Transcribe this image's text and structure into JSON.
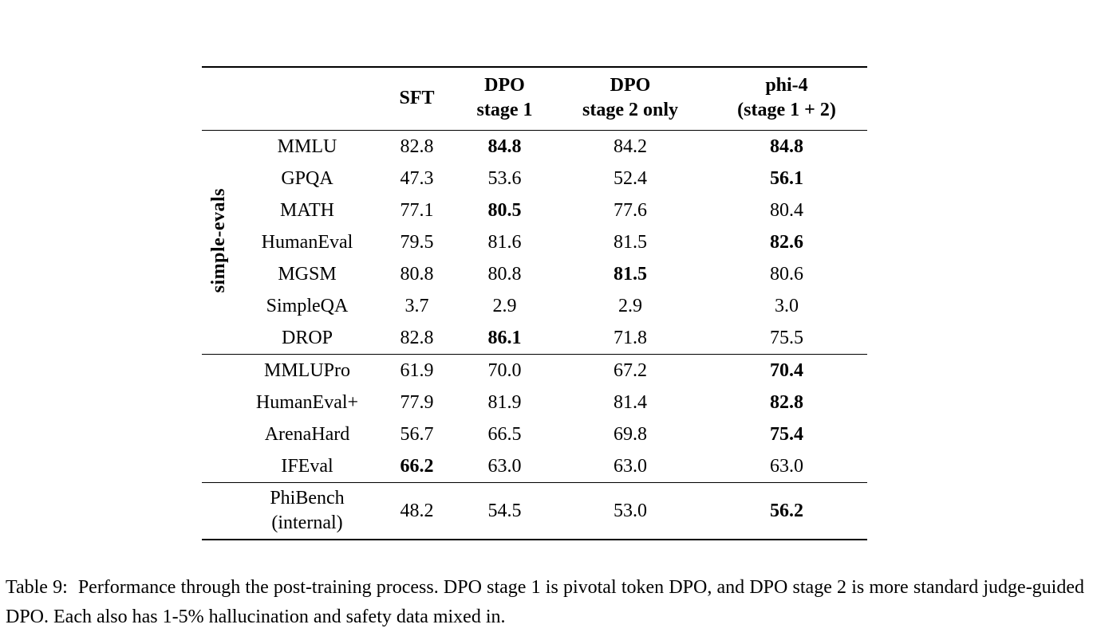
{
  "page": {
    "background_color": "#ffffff",
    "text_color": "#000000"
  },
  "table": {
    "header": {
      "columns": [
        {
          "lines": [
            "SFT"
          ]
        },
        {
          "lines": [
            "DPO",
            "stage 1"
          ]
        },
        {
          "lines": [
            "DPO",
            "stage 2 only"
          ]
        },
        {
          "lines": [
            "phi-4",
            "(stage 1 + 2)"
          ]
        }
      ]
    },
    "sections": [
      {
        "group_label": "simple-evals",
        "rows": [
          {
            "label": "MMLU",
            "values": [
              {
                "text": "82.8",
                "bold": false
              },
              {
                "text": "84.8",
                "bold": true
              },
              {
                "text": "84.2",
                "bold": false
              },
              {
                "text": "84.8",
                "bold": true
              }
            ]
          },
          {
            "label": "GPQA",
            "values": [
              {
                "text": "47.3",
                "bold": false
              },
              {
                "text": "53.6",
                "bold": false
              },
              {
                "text": "52.4",
                "bold": false
              },
              {
                "text": "56.1",
                "bold": true
              }
            ]
          },
          {
            "label": "MATH",
            "values": [
              {
                "text": "77.1",
                "bold": false
              },
              {
                "text": "80.5",
                "bold": true
              },
              {
                "text": "77.6",
                "bold": false
              },
              {
                "text": "80.4",
                "bold": false
              }
            ]
          },
          {
            "label": "HumanEval",
            "values": [
              {
                "text": "79.5",
                "bold": false
              },
              {
                "text": "81.6",
                "bold": false
              },
              {
                "text": "81.5",
                "bold": false
              },
              {
                "text": "82.6",
                "bold": true
              }
            ]
          },
          {
            "label": "MGSM",
            "values": [
              {
                "text": "80.8",
                "bold": false
              },
              {
                "text": "80.8",
                "bold": false
              },
              {
                "text": "81.5",
                "bold": true
              },
              {
                "text": "80.6",
                "bold": false
              }
            ]
          },
          {
            "label": "SimpleQA",
            "values": [
              {
                "text": "3.7",
                "bold": false
              },
              {
                "text": "2.9",
                "bold": false
              },
              {
                "text": "2.9",
                "bold": false
              },
              {
                "text": "3.0",
                "bold": false
              }
            ]
          },
          {
            "label": "DROP",
            "values": [
              {
                "text": "82.8",
                "bold": false
              },
              {
                "text": "86.1",
                "bold": true
              },
              {
                "text": "71.8",
                "bold": false
              },
              {
                "text": "75.5",
                "bold": false
              }
            ]
          }
        ]
      },
      {
        "group_label": "",
        "rows": [
          {
            "label": "MMLUPro",
            "values": [
              {
                "text": "61.9",
                "bold": false
              },
              {
                "text": "70.0",
                "bold": false
              },
              {
                "text": "67.2",
                "bold": false
              },
              {
                "text": "70.4",
                "bold": true
              }
            ]
          },
          {
            "label": "HumanEval+",
            "values": [
              {
                "text": "77.9",
                "bold": false
              },
              {
                "text": "81.9",
                "bold": false
              },
              {
                "text": "81.4",
                "bold": false
              },
              {
                "text": "82.8",
                "bold": true
              }
            ]
          },
          {
            "label": "ArenaHard",
            "values": [
              {
                "text": "56.7",
                "bold": false
              },
              {
                "text": "66.5",
                "bold": false
              },
              {
                "text": "69.8",
                "bold": false
              },
              {
                "text": "75.4",
                "bold": true
              }
            ]
          },
          {
            "label": "IFEval",
            "values": [
              {
                "text": "66.2",
                "bold": true
              },
              {
                "text": "63.0",
                "bold": false
              },
              {
                "text": "63.0",
                "bold": false
              },
              {
                "text": "63.0",
                "bold": false
              }
            ]
          }
        ]
      },
      {
        "group_label": "",
        "rows": [
          {
            "label": "PhiBench\n(internal)",
            "values": [
              {
                "text": "48.2",
                "bold": false
              },
              {
                "text": "54.5",
                "bold": false
              },
              {
                "text": "53.0",
                "bold": false
              },
              {
                "text": "56.2",
                "bold": true
              }
            ]
          }
        ]
      }
    ]
  },
  "caption": {
    "label": "Table 9:",
    "text": "Performance through the post-training process. DPO stage 1 is pivotal token DPO, and DPO stage 2 is more standard judge-guided DPO. Each also has 1-5% hallucination and safety data mixed in."
  }
}
